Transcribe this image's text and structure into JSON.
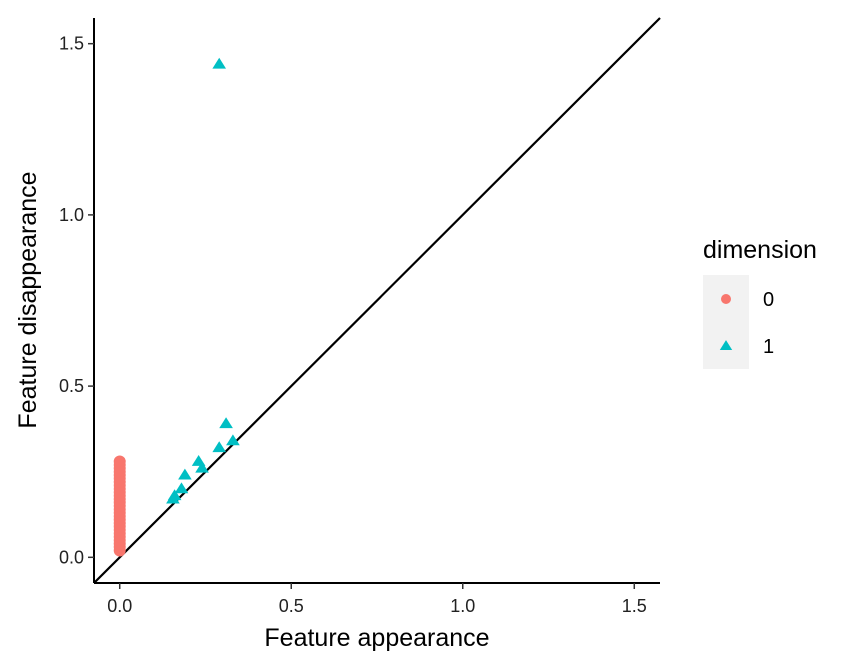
{
  "chart_data": {
    "type": "scatter",
    "xlabel": "Feature appearance",
    "ylabel": "Feature disappearance",
    "xlim": [
      -0.075,
      1.575
    ],
    "ylim": [
      -0.075,
      1.575
    ],
    "x_ticks": [
      0.0,
      0.5,
      1.0,
      1.5
    ],
    "y_ticks": [
      0.0,
      0.5,
      1.0,
      1.5
    ],
    "x_tick_labels": [
      "0.0",
      "0.5",
      "1.0",
      "1.5"
    ],
    "y_tick_labels": [
      "0.0",
      "0.5",
      "1.0",
      "1.5"
    ],
    "grid": false,
    "diagonal_line": true,
    "legend": {
      "title": "dimension",
      "position": "right",
      "entries": [
        {
          "label": "0",
          "shape": "circle",
          "color": "#F8766D"
        },
        {
          "label": "1",
          "shape": "triangle",
          "color": "#00BFC4"
        }
      ]
    },
    "series": [
      {
        "name": "0",
        "shape": "circle",
        "color": "#F8766D",
        "points": [
          {
            "x": 0.0,
            "y": 0.02
          },
          {
            "x": 0.0,
            "y": 0.03
          },
          {
            "x": 0.0,
            "y": 0.04
          },
          {
            "x": 0.0,
            "y": 0.05
          },
          {
            "x": 0.0,
            "y": 0.06
          },
          {
            "x": 0.0,
            "y": 0.07
          },
          {
            "x": 0.0,
            "y": 0.08
          },
          {
            "x": 0.0,
            "y": 0.09
          },
          {
            "x": 0.0,
            "y": 0.1
          },
          {
            "x": 0.0,
            "y": 0.11
          },
          {
            "x": 0.0,
            "y": 0.12
          },
          {
            "x": 0.0,
            "y": 0.13
          },
          {
            "x": 0.0,
            "y": 0.14
          },
          {
            "x": 0.0,
            "y": 0.15
          },
          {
            "x": 0.0,
            "y": 0.16
          },
          {
            "x": 0.0,
            "y": 0.17
          },
          {
            "x": 0.0,
            "y": 0.18
          },
          {
            "x": 0.0,
            "y": 0.19
          },
          {
            "x": 0.0,
            "y": 0.2
          },
          {
            "x": 0.0,
            "y": 0.21
          },
          {
            "x": 0.0,
            "y": 0.22
          },
          {
            "x": 0.0,
            "y": 0.23
          },
          {
            "x": 0.0,
            "y": 0.24
          },
          {
            "x": 0.0,
            "y": 0.25
          },
          {
            "x": 0.0,
            "y": 0.26
          },
          {
            "x": 0.0,
            "y": 0.27
          },
          {
            "x": 0.0,
            "y": 0.28
          }
        ]
      },
      {
        "name": "1",
        "shape": "triangle",
        "color": "#00BFC4",
        "points": [
          {
            "x": 0.29,
            "y": 1.44
          },
          {
            "x": 0.31,
            "y": 0.39
          },
          {
            "x": 0.33,
            "y": 0.34
          },
          {
            "x": 0.29,
            "y": 0.32
          },
          {
            "x": 0.23,
            "y": 0.28
          },
          {
            "x": 0.24,
            "y": 0.26
          },
          {
            "x": 0.19,
            "y": 0.24
          },
          {
            "x": 0.18,
            "y": 0.2
          },
          {
            "x": 0.16,
            "y": 0.18
          },
          {
            "x": 0.155,
            "y": 0.17
          }
        ]
      }
    ]
  }
}
